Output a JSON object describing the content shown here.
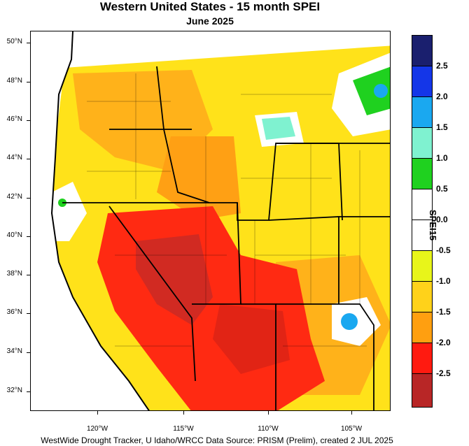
{
  "title": "Western United States - 15 month SPEI",
  "subtitle": "June 2025",
  "footer": "WestWide Drought Tracker, U Idaho/WRCC Data Source: PRISM (Prelim), created  2 JUL 2025",
  "latitude_labels": [
    "50°N",
    "48°N",
    "46°N",
    "44°N",
    "42°N",
    "40°N",
    "38°N",
    "36°N",
    "34°N",
    "32°N"
  ],
  "longitude_labels": [
    "120°W",
    "115°W",
    "110°W",
    "105°W"
  ],
  "legend": {
    "title": "SPEI15",
    "tick_labels": [
      "2.5",
      "2.0",
      "1.5",
      "1.0",
      "0.5",
      "0.0",
      "-0.5",
      "-1.0",
      "-1.5",
      "-2.0",
      "-2.5"
    ],
    "colors": [
      "#1a1f6e",
      "#1436e8",
      "#1aa8f0",
      "#7ff2d0",
      "#1fd11f",
      "#ffffff",
      "#ffffff",
      "#e8f51a",
      "#ffd21a",
      "#ff9f10",
      "#ff1a10",
      "#b82626"
    ]
  }
}
